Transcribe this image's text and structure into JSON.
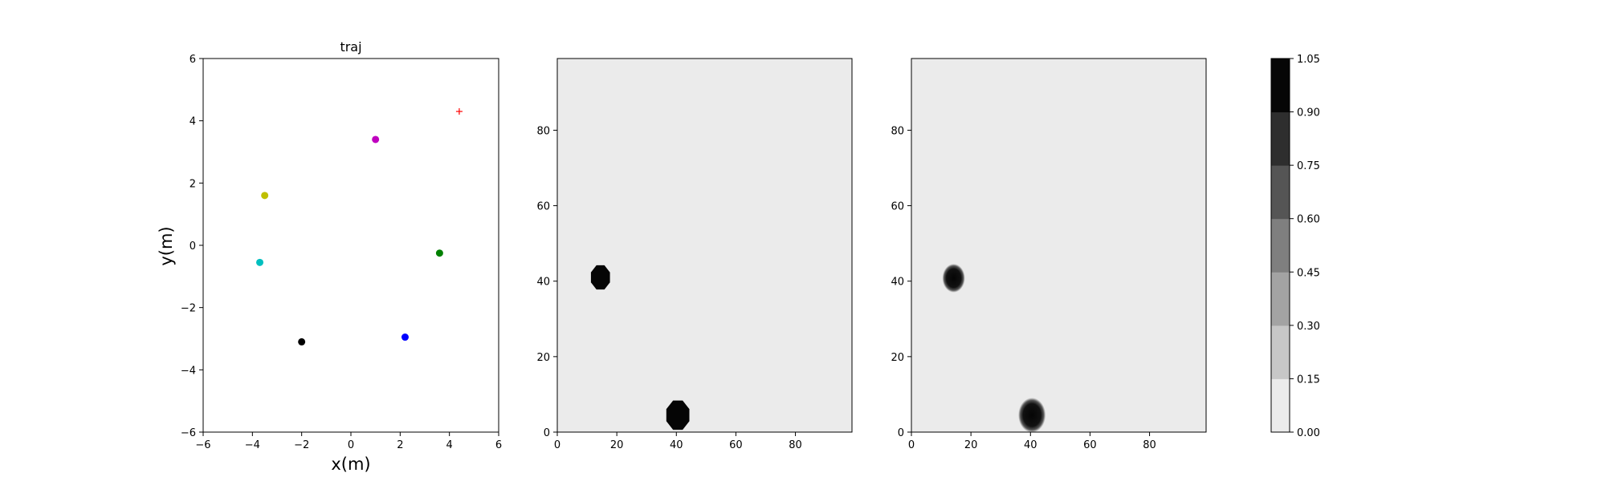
{
  "chart_data": [
    {
      "type": "scatter",
      "title": "traj",
      "xlabel": "x(m)",
      "ylabel": "y(m)",
      "xlim": [
        -6,
        6
      ],
      "ylim": [
        -6,
        6
      ],
      "xticks": [
        -6,
        -4,
        -2,
        0,
        2,
        4,
        6
      ],
      "yticks": [
        -6,
        -4,
        -2,
        0,
        2,
        4,
        6
      ],
      "grid": false,
      "points": [
        {
          "x": 1.0,
          "y": 3.4,
          "color": "#bf00bf",
          "marker": "circle"
        },
        {
          "x": -3.5,
          "y": 1.6,
          "color": "#bfbf00",
          "marker": "circle"
        },
        {
          "x": -3.7,
          "y": -0.55,
          "color": "#00bfbf",
          "marker": "circle"
        },
        {
          "x": 3.6,
          "y": -0.25,
          "color": "#008000",
          "marker": "circle"
        },
        {
          "x": -2.0,
          "y": -3.1,
          "color": "#000000",
          "marker": "circle"
        },
        {
          "x": 2.2,
          "y": -2.95,
          "color": "#0000ff",
          "marker": "circle"
        },
        {
          "x": 4.4,
          "y": 4.3,
          "color": "#ff0000",
          "marker": "plus"
        }
      ]
    },
    {
      "type": "heatmap",
      "title": "",
      "xlim": [
        0,
        99
      ],
      "ylim": [
        0,
        99
      ],
      "xticks": [
        0,
        20,
        40,
        60,
        80
      ],
      "yticks": [
        0,
        20,
        40,
        60,
        80
      ],
      "background_value": 0.05,
      "blobs": [
        {
          "cx": 14.5,
          "cy": 41,
          "r": 3.3,
          "value": 1.0
        },
        {
          "cx": 40.5,
          "cy": 4.5,
          "r": 4.0,
          "value": 1.0
        }
      ],
      "soft": false
    },
    {
      "type": "heatmap",
      "title": "",
      "xlim": [
        0,
        99
      ],
      "ylim": [
        0,
        99
      ],
      "xticks": [
        0,
        20,
        40,
        60,
        80
      ],
      "yticks": [
        0,
        20,
        40,
        60,
        80
      ],
      "background_value": 0.05,
      "blobs": [
        {
          "cx": 14.2,
          "cy": 40.8,
          "r": 3.3,
          "value": 1.0
        },
        {
          "cx": 40.5,
          "cy": 4.5,
          "r": 4.0,
          "value": 1.0
        }
      ],
      "soft": true
    }
  ],
  "colorbar": {
    "levels": [
      "0.00",
      "0.15",
      "0.30",
      "0.45",
      "0.60",
      "0.75",
      "0.90",
      "1.05"
    ],
    "colors": [
      "#ebebeb",
      "#c7c7c7",
      "#a3a3a3",
      "#7f7f7f",
      "#555555",
      "#2e2e2e",
      "#060606"
    ]
  }
}
